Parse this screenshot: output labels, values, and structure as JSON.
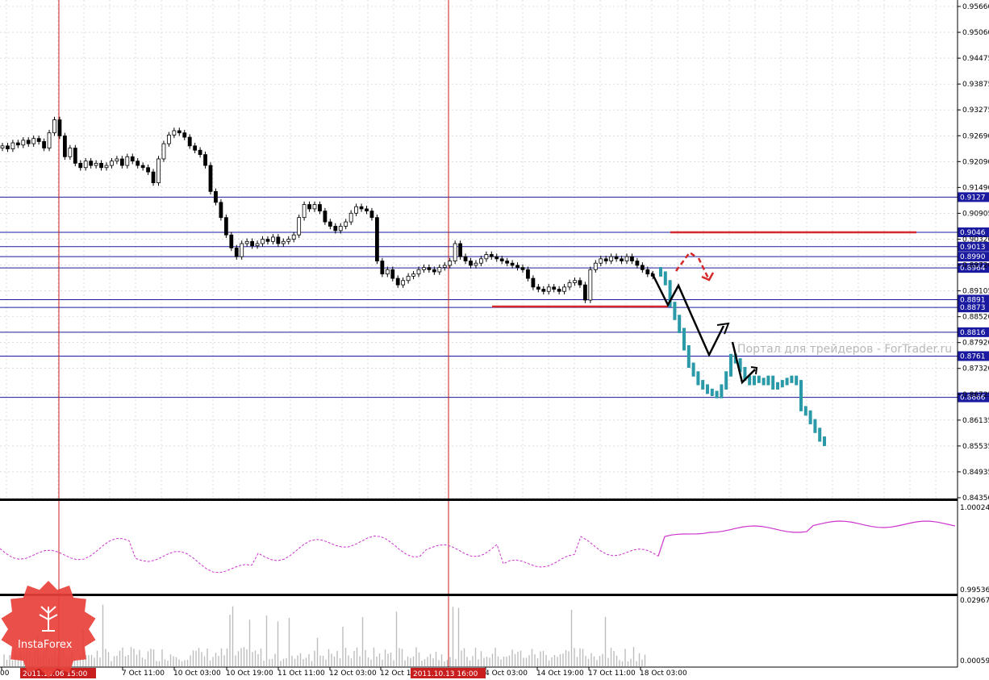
{
  "colors": {
    "level_line": "#1a1aa0",
    "vertical_line": "#c81e1e",
    "candle": "#000000",
    "forecast": "#2a9aa8",
    "arrow_red": "#d62828",
    "arrow_black": "#000000",
    "indicator": "#cc33cc",
    "volume": "#bdbdbd",
    "logo": "#e8403a"
  },
  "price_axis": {
    "labels": [
      "0.95660",
      "0.95060",
      "0.94475",
      "0.93875",
      "0.93275",
      "0.92690",
      "0.92090",
      "0.91490",
      "0.90905",
      "0.90320",
      "0.89720",
      "0.89105",
      "0.88520",
      "0.87920",
      "0.87320",
      "0.86725",
      "0.86135",
      "0.85535",
      "0.84935",
      "0.84350"
    ],
    "min": 0.8435,
    "max": 0.9566
  },
  "levels": [
    {
      "label": "0.9127",
      "price": 0.9127
    },
    {
      "label": "0.9046",
      "price": 0.9046
    },
    {
      "label": "0.9013",
      "price": 0.9013
    },
    {
      "label": "0.8990",
      "price": 0.899
    },
    {
      "label": "0.8964",
      "price": 0.8964
    },
    {
      "label": "0.8891",
      "price": 0.8891
    },
    {
      "label": "0.8873",
      "price": 0.8873
    },
    {
      "label": "0.8816",
      "price": 0.8816
    },
    {
      "label": "0.8761",
      "price": 0.8761
    },
    {
      "label": "0.8666",
      "price": 0.8666
    }
  ],
  "indicator": {
    "axis_top": "1.00024",
    "axis_bottom": "0.99536"
  },
  "volume": {
    "axis_top": "0.02967",
    "axis_bottom": "0.00059"
  },
  "time_axis": {
    "labels": [
      "00",
      "7 Oct 11:00",
      "10 Oct 03:00",
      "10 Oct 19:00",
      "11 Oct 11:00",
      "12 Oct 03:00",
      "12 Oct 1",
      "4 Oct 03:00",
      "14 Oct 19:00",
      "17 Oct 11:00",
      "18 Oct 03:00"
    ],
    "highlight_1": "2011.10.06 15:00",
    "highlight_2": "2011.10.13 16:00"
  },
  "watermark": "Портал для трейдеров - ForTrader.ru",
  "logo": {
    "text": "InstaForex"
  },
  "candles_c": [
    0.9245,
    0.9238,
    0.9252,
    0.9247,
    0.9258,
    0.925,
    0.9262,
    0.9255,
    0.924,
    0.9275,
    0.9305,
    0.9268,
    0.922,
    0.924,
    0.9205,
    0.9195,
    0.921,
    0.92,
    0.9205,
    0.9195,
    0.92,
    0.921,
    0.9215,
    0.92,
    0.922,
    0.921,
    0.92,
    0.9195,
    0.9185,
    0.916,
    0.9215,
    0.925,
    0.927,
    0.928,
    0.9275,
    0.9265,
    0.9245,
    0.9235,
    0.9225,
    0.92,
    0.914,
    0.9115,
    0.908,
    0.904,
    0.901,
    0.899,
    0.902,
    0.9025,
    0.9015,
    0.902,
    0.903,
    0.9025,
    0.9035,
    0.902,
    0.9025,
    0.903,
    0.904,
    0.908,
    0.911,
    0.91,
    0.911,
    0.9095,
    0.907,
    0.906,
    0.905,
    0.906,
    0.907,
    0.909,
    0.9105,
    0.91,
    0.9095,
    0.908,
    0.898,
    0.895,
    0.896,
    0.894,
    0.8925,
    0.8935,
    0.8945,
    0.895,
    0.896,
    0.8965,
    0.896,
    0.8955,
    0.8965,
    0.897,
    0.898,
    0.902,
    0.899,
    0.898,
    0.897,
    0.8975,
    0.8985,
    0.8995,
    0.899,
    0.8985,
    0.898,
    0.8975,
    0.897,
    0.8965,
    0.896,
    0.894,
    0.892,
    0.8915,
    0.891,
    0.892,
    0.8915,
    0.891,
    0.892,
    0.893,
    0.8935,
    0.8925,
    0.889,
    0.896,
    0.8975,
    0.8985,
    0.898,
    0.899,
    0.8985,
    0.898,
    0.899,
    0.898,
    0.897,
    0.896,
    0.895,
    0.8945
  ],
  "forecast_c": [
    0.895,
    0.893,
    0.888,
    0.885,
    0.882,
    0.878,
    0.874,
    0.872,
    0.87,
    0.869,
    0.868,
    0.8675,
    0.867,
    0.869,
    0.872,
    0.876,
    0.875,
    0.873,
    0.871,
    0.87,
    0.871,
    0.8705,
    0.87,
    0.871,
    0.869,
    0.8695,
    0.87,
    0.8705,
    0.871,
    0.87,
    0.864,
    0.863,
    0.861,
    0.859,
    0.857,
    0.856
  ]
}
